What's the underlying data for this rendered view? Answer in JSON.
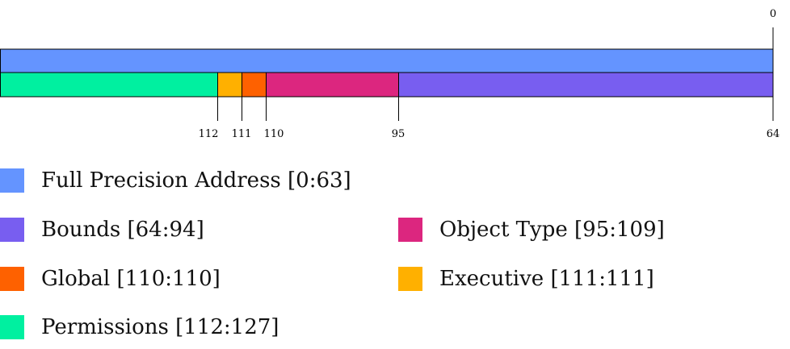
{
  "colors": {
    "full_precision_address": "#6494FF",
    "bounds": "#785EF0",
    "object_type": "#DC267F",
    "global": "#FE6100",
    "executive": "#FFB000",
    "permissions": "#00F0A0",
    "outline": "#000000"
  },
  "top_row": {
    "bit_label": "0",
    "segment": "full_precision_address"
  },
  "bottom_row": {
    "segments": [
      {
        "key": "permissions",
        "from_bit": 127,
        "to_bit": 112
      },
      {
        "key": "executive",
        "from_bit": 111,
        "to_bit": 111
      },
      {
        "key": "global",
        "from_bit": 110,
        "to_bit": 110
      },
      {
        "key": "object_type",
        "from_bit": 109,
        "to_bit": 95
      },
      {
        "key": "bounds",
        "from_bit": 94,
        "to_bit": 64
      }
    ],
    "boundary_labels": [
      "112",
      "111",
      "110",
      "95",
      "64"
    ]
  },
  "legend": {
    "full_precision_address": "Full Precision Address [0:63]",
    "bounds": "Bounds [64:94]",
    "object_type": "Object Type [95:109]",
    "global": "Global [110:110]",
    "executive": "Executive [111:111]",
    "permissions": "Permissions [112:127]"
  }
}
